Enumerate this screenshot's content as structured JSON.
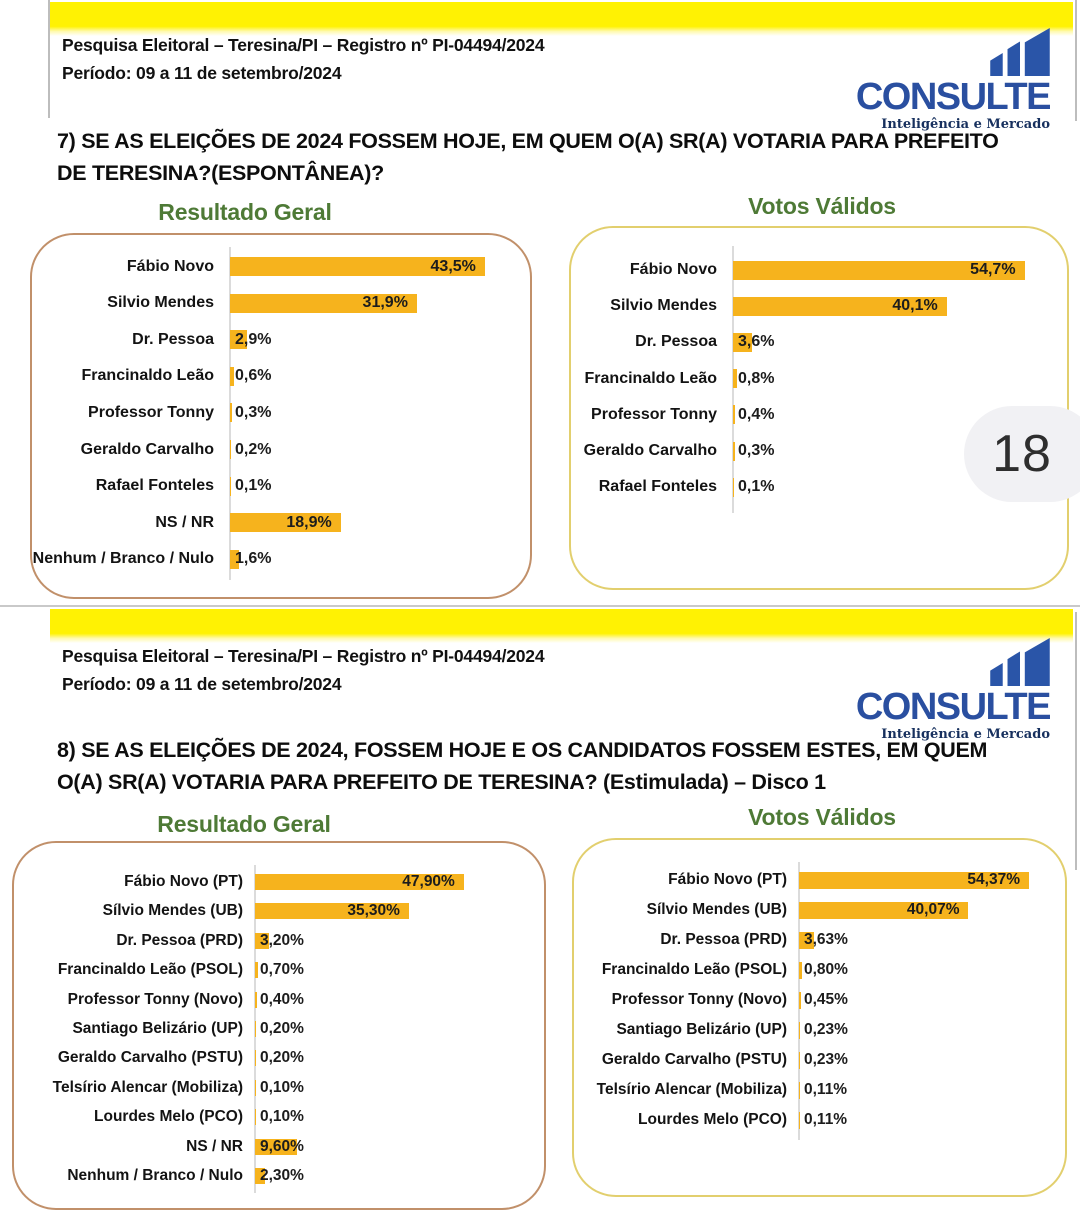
{
  "colors": {
    "bar": "#f6b31d",
    "title_green": "#4e7a36",
    "logo_blue": "#2a4fa0",
    "top_band_yellow": "#fff203",
    "box_border_tan": "#c1906a",
    "box_border_yellow": "#e2cf6e",
    "pill_gray": "#f1f1f4"
  },
  "page1": {
    "header": {
      "line1": "Pesquisa Eleitoral – Teresina/PI – Registro nº PI-04494/2024",
      "line2": "Período: 09 a 11 de setembro/2024"
    },
    "logo": {
      "word": "CONSULTE",
      "tagline": "Inteligência e Mercado"
    },
    "question": {
      "lines": [
        "7) SE AS ELEIÇÕES DE 2024 FOSSEM HOJE, EM QUEM O(A) SR(A) VOTARIA PARA PREFEITO",
        "DE TERESINA?(ESPONTÂNEA)?"
      ]
    },
    "page_number": "18"
  },
  "page2": {
    "header": {
      "line1": "Pesquisa Eleitoral – Teresina/PI – Registro nº PI-04494/2024",
      "line2": "Período: 09 a 11 de setembro/2024"
    },
    "logo": {
      "word": "CONSULTE",
      "tagline": "Inteligência e Mercado"
    },
    "question": {
      "lines": [
        "8) SE AS ELEIÇÕES DE 2024, FOSSEM HOJE E OS CANDIDATOS FOSSEM ESTES, EM QUEM",
        "O(A) SR(A) VOTARIA PARA PREFEITO DE TERESINA? (Estimulada) – Disco 1"
      ]
    }
  },
  "chart_data": [
    {
      "id": "q7g",
      "type": "bar",
      "orientation": "horizontal",
      "title": "Resultado Geral",
      "unit": "%",
      "xlim": [
        0,
        60
      ],
      "grid": false,
      "categories": [
        "Fábio Novo",
        "Silvio Mendes",
        "Dr. Pessoa",
        "Francinaldo Leão",
        "Professor Tonny",
        "Geraldo Carvalho",
        "Rafael Fonteles",
        "NS / NR",
        "Nenhum / Branco / Nulo"
      ],
      "values": [
        43.5,
        31.9,
        2.9,
        0.6,
        0.3,
        0.2,
        0.1,
        18.9,
        1.6
      ],
      "value_labels": [
        "43,5%",
        "31,9%",
        "2,9%",
        "0,6%",
        "0,3%",
        "0,2%",
        "0,1%",
        "18,9%",
        "1,6%"
      ]
    },
    {
      "id": "q7v",
      "type": "bar",
      "orientation": "horizontal",
      "title": "Votos Válidos",
      "unit": "%",
      "xlim": [
        0,
        60
      ],
      "grid": false,
      "categories": [
        "Fábio Novo",
        "Silvio Mendes",
        "Dr. Pessoa",
        "Francinaldo Leão",
        "Professor Tonny",
        "Geraldo Carvalho",
        "Rafael Fonteles"
      ],
      "values": [
        54.7,
        40.1,
        3.6,
        0.8,
        0.4,
        0.3,
        0.1
      ],
      "value_labels": [
        "54,7%",
        "40,1%",
        "3,6%",
        "0,8%",
        "0,4%",
        "0,3%",
        "0,1%"
      ]
    },
    {
      "id": "q8g",
      "type": "bar",
      "orientation": "horizontal",
      "title": "Resultado Geral",
      "unit": "%",
      "xlim": [
        0,
        60
      ],
      "grid": false,
      "categories": [
        "Fábio Novo (PT)",
        "Sílvio Mendes (UB)",
        "Dr. Pessoa (PRD)",
        "Francinaldo Leão (PSOL)",
        "Professor Tonny (Novo)",
        "Santiago Belizário (UP)",
        "Geraldo Carvalho (PSTU)",
        "Telsírio Alencar (Mobiliza)",
        "Lourdes Melo (PCO)",
        "NS / NR",
        "Nenhum / Branco / Nulo"
      ],
      "values": [
        47.9,
        35.3,
        3.2,
        0.7,
        0.4,
        0.2,
        0.2,
        0.1,
        0.1,
        9.6,
        2.3
      ],
      "value_labels": [
        "47,90%",
        "35,30%",
        "3,20%",
        "0,70%",
        "0,40%",
        "0,20%",
        "0,20%",
        "0,10%",
        "0,10%",
        "9,60%",
        "2,30%"
      ]
    },
    {
      "id": "q8v",
      "type": "bar",
      "orientation": "horizontal",
      "title": "Votos Válidos",
      "unit": "%",
      "xlim": [
        0,
        60
      ],
      "grid": false,
      "categories": [
        "Fábio Novo (PT)",
        "Sílvio Mendes (UB)",
        "Dr. Pessoa (PRD)",
        "Francinaldo Leão (PSOL)",
        "Professor Tonny (Novo)",
        "Santiago Belizário (UP)",
        "Geraldo Carvalho (PSTU)",
        "Telsírio Alencar (Mobiliza)",
        "Lourdes Melo (PCO)"
      ],
      "values": [
        54.37,
        40.07,
        3.63,
        0.8,
        0.45,
        0.23,
        0.23,
        0.11,
        0.11
      ],
      "value_labels": [
        "54,37%",
        "40,07%",
        "3,63%",
        "0,80%",
        "0,45%",
        "0,23%",
        "0,23%",
        "0,11%",
        "0,11%"
      ]
    }
  ]
}
